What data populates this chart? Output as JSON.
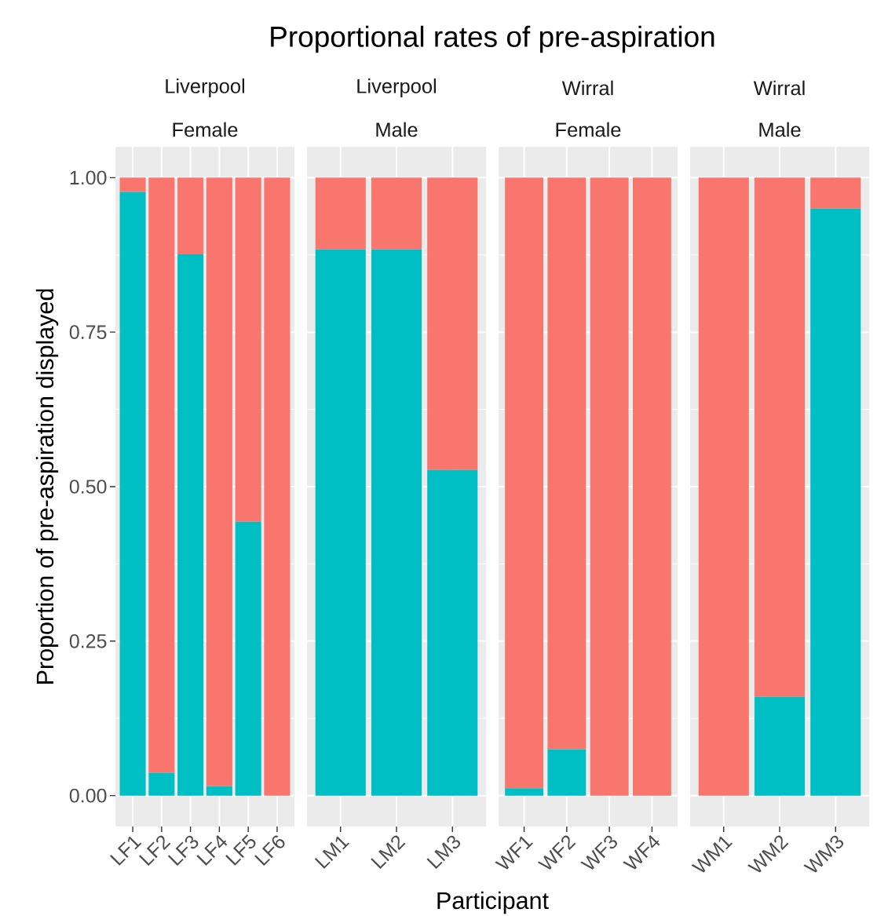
{
  "chart_data": [
    {
      "type": "bar",
      "stacked": true,
      "title": "Proportional rates of pre-aspiration",
      "xlabel": "Participant",
      "ylabel": "Proportion of pre-aspiration displayed",
      "annotations": [
        "Liverpool",
        "Female"
      ],
      "categories": [
        "LF1",
        "LF2",
        "LF3",
        "LF4",
        "LF5",
        "LF6"
      ],
      "series": [
        {
          "color": "#00bfc4",
          "values": [
            0.977,
            0.037,
            0.876,
            0.015,
            0.443,
            0
          ]
        },
        {
          "color": "#f8766d",
          "values": [
            0.023,
            0.963,
            0.124,
            0.985,
            0.557,
            1
          ]
        }
      ],
      "ylim": [
        -0.05,
        1.05
      ],
      "yticks": [
        {
          "value": 0,
          "label": "0.00"
        },
        {
          "value": 0.125,
          "label": null
        },
        {
          "value": 0.25,
          "label": "0.25"
        },
        {
          "value": 0.375,
          "label": null
        },
        {
          "value": 0.5,
          "label": "0.50"
        },
        {
          "value": 0.625,
          "label": null
        },
        {
          "value": 0.75,
          "label": "0.75"
        },
        {
          "value": 0.875,
          "label": null
        },
        {
          "value": 1,
          "label": "1.00"
        }
      ],
      "grid": true
    },
    {
      "type": "bar",
      "stacked": true,
      "annotations": [
        "Liverpool",
        "Male"
      ],
      "categories": [
        "LM1",
        "LM2",
        "LM3"
      ],
      "series": [
        {
          "color": "#00bfc4",
          "values": [
            0.884,
            0.884,
            0.527
          ]
        },
        {
          "color": "#f8766d",
          "values": [
            0.116,
            0.116,
            0.473
          ]
        }
      ],
      "ylim": [
        -0.05,
        1.05
      ],
      "yticks": [
        0,
        {
          "value": 0.125,
          "label": null
        },
        0.25,
        {
          "value": 0.375,
          "label": null
        },
        0.5,
        {
          "value": 0.625,
          "label": null
        },
        0.75,
        {
          "value": 0.875,
          "label": null
        },
        1
      ],
      "grid": true,
      "tick_labels": "x"
    },
    {
      "type": "bar",
      "stacked": true,
      "annotations": [
        "Wirral",
        "Female"
      ],
      "categories": [
        "WF1",
        "WF2",
        "WF3",
        "WF4"
      ],
      "series": [
        {
          "color": "#00bfc4",
          "values": [
            0.012,
            0.075,
            0,
            0
          ]
        },
        {
          "color": "#f8766d",
          "values": [
            0.988,
            0.925,
            1,
            1
          ]
        }
      ],
      "ylim": [
        -0.05,
        1.05
      ],
      "yticks": [
        0,
        {
          "value": 0.125,
          "label": null
        },
        0.25,
        {
          "value": 0.375,
          "label": null
        },
        0.5,
        {
          "value": 0.625,
          "label": null
        },
        0.75,
        {
          "value": 0.875,
          "label": null
        },
        1
      ],
      "grid": true,
      "tick_labels": "x"
    },
    {
      "type": "bar",
      "stacked": true,
      "annotations": [
        "Wirral",
        "Male"
      ],
      "categories": [
        "WM1",
        "WM2",
        "WM3"
      ],
      "series": [
        {
          "color": "#00bfc4",
          "values": [
            0,
            0.16,
            0.95
          ]
        },
        {
          "color": "#f8766d",
          "values": [
            1,
            0.84,
            0.05
          ]
        }
      ],
      "ylim": [
        -0.05,
        1.05
      ],
      "yticks": [
        0,
        {
          "value": 0.125,
          "label": null
        },
        0.25,
        {
          "value": 0.375,
          "label": null
        },
        0.5,
        {
          "value": 0.625,
          "label": null
        },
        0.75,
        {
          "value": 0.875,
          "label": null
        },
        1
      ],
      "grid": true,
      "tick_labels": "x"
    }
  ]
}
